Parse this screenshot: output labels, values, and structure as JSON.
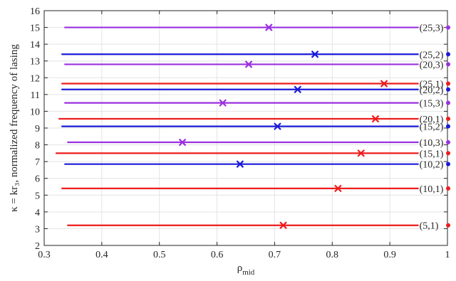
{
  "chart_data": {
    "type": "line",
    "xlabel": "ρ",
    "xlabel_sub": "mid",
    "ylabel": "κ = kr₃, normalized frequency of lasing",
    "xlim": [
      0.3,
      1.0
    ],
    "ylim": [
      2,
      16
    ],
    "xticks": [
      "0.3",
      "0.4",
      "0.5",
      "0.6",
      "0.7",
      "0.8",
      "0.9",
      "1"
    ],
    "yticks": [
      "2",
      "3",
      "4",
      "5",
      "6",
      "7",
      "8",
      "9",
      "10",
      "11",
      "12",
      "13",
      "14",
      "15",
      "16"
    ],
    "grid": true,
    "colors": {
      "1": "#ee1c1c",
      "2": "#1a1ad8",
      "3": "#9b30e0"
    },
    "series": [
      {
        "label": "(5,1)",
        "group": 1,
        "y": 3.2,
        "x_start": 0.34,
        "x_end": 0.95,
        "cross_x": 0.715
      },
      {
        "label": "(10,1)",
        "group": 1,
        "y": 5.4,
        "x_start": 0.33,
        "x_end": 0.95,
        "cross_x": 0.81
      },
      {
        "label": "(10,2)",
        "group": 2,
        "y": 6.85,
        "x_start": 0.335,
        "x_end": 0.95,
        "cross_x": 0.64
      },
      {
        "label": "(15,1)",
        "group": 1,
        "y": 7.5,
        "x_start": 0.32,
        "x_end": 0.95,
        "cross_x": 0.85
      },
      {
        "label": "(10,3)",
        "group": 3,
        "y": 8.15,
        "x_start": 0.34,
        "x_end": 0.95,
        "cross_x": 0.54
      },
      {
        "label": "(15,2)",
        "group": 2,
        "y": 9.1,
        "x_start": 0.33,
        "x_end": 0.95,
        "cross_x": 0.705
      },
      {
        "label": "(20,1)",
        "group": 1,
        "y": 9.55,
        "x_start": 0.325,
        "x_end": 0.95,
        "cross_x": 0.875
      },
      {
        "label": "(15,3)",
        "group": 3,
        "y": 10.5,
        "x_start": 0.335,
        "x_end": 0.95,
        "cross_x": 0.61
      },
      {
        "label": "(20,2)",
        "group": 2,
        "y": 11.3,
        "x_start": 0.33,
        "x_end": 0.95,
        "cross_x": 0.74
      },
      {
        "label": "(25,1)",
        "group": 1,
        "y": 11.65,
        "x_start": 0.33,
        "x_end": 0.95,
        "cross_x": 0.89
      },
      {
        "label": "(20,3)",
        "group": 3,
        "y": 12.8,
        "x_start": 0.335,
        "x_end": 0.95,
        "cross_x": 0.655
      },
      {
        "label": "(25,2)",
        "group": 2,
        "y": 13.4,
        "x_start": 0.33,
        "x_end": 0.95,
        "cross_x": 0.77
      },
      {
        "label": "(25,3)",
        "group": 3,
        "y": 15.0,
        "x_start": 0.335,
        "x_end": 0.95,
        "cross_x": 0.69
      }
    ]
  }
}
